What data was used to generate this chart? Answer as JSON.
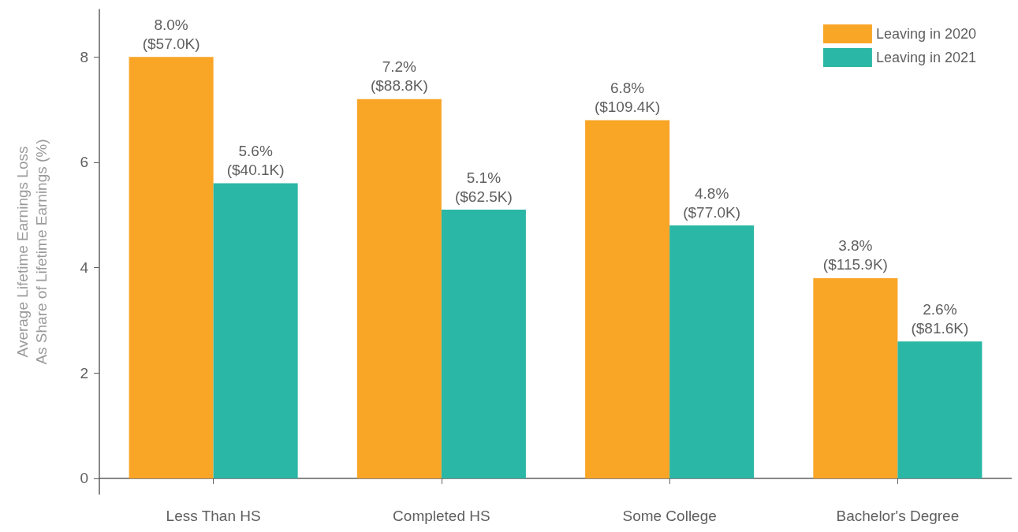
{
  "chart_data": {
    "type": "bar",
    "ylabel": "Average Lifetime Earnings Loss\nAs Share of Lifetime Earnings (%)",
    "categories": [
      "Less Than HS",
      "Completed HS",
      "Some College",
      "Bachelor's Degree"
    ],
    "series": [
      {
        "name": "Leaving in 2020",
        "color": "#f9a526",
        "values": [
          8.0,
          7.2,
          6.8,
          3.8
        ],
        "value_labels": [
          "8.0%\n($57.0K)",
          "7.2%\n($88.8K)",
          "6.8%\n($109.4K)",
          "3.8%\n($115.9K)"
        ]
      },
      {
        "name": "Leaving in 2021",
        "color": "#2bb7a5",
        "values": [
          5.6,
          5.1,
          4.8,
          2.6
        ],
        "value_labels": [
          "5.6%\n($40.1K)",
          "5.1%\n($62.5K)",
          "4.8%\n($77.0K)",
          "2.6%\n($81.6K)"
        ]
      }
    ],
    "ylim": [
      -0.3,
      8.9
    ],
    "yticks": [
      0,
      2,
      4,
      6,
      8
    ],
    "grid": false,
    "legend": "top right"
  }
}
